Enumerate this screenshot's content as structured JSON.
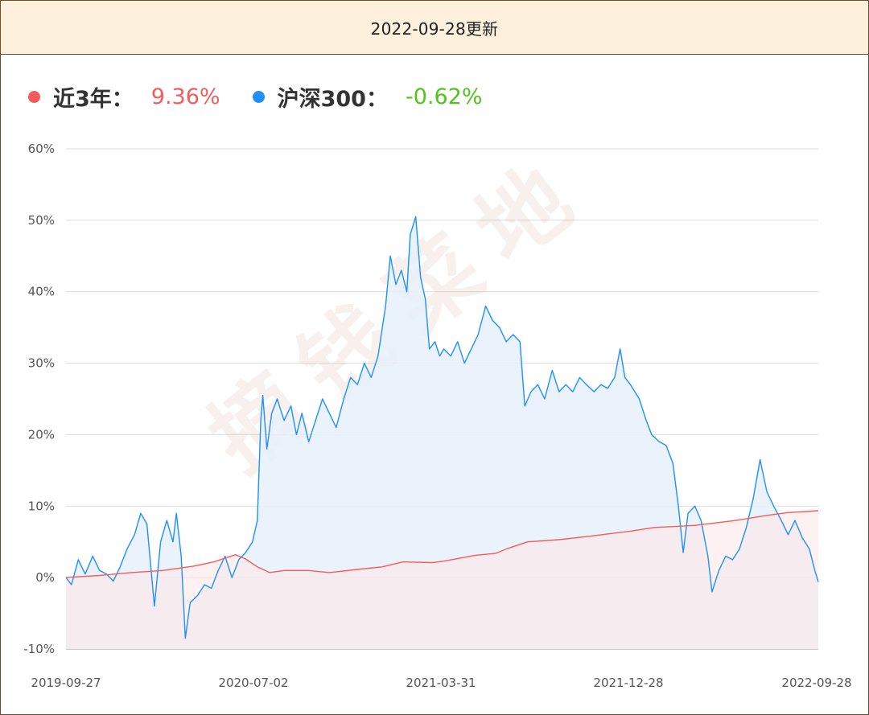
{
  "header": {
    "update_text": "2022-09-28更新"
  },
  "legend": [
    {
      "name": "近3年：",
      "value": "9.36%",
      "color": "#f45b5b",
      "value_color": "#f45b5b"
    },
    {
      "name": "沪深300：",
      "value": "-0.62%",
      "color": "#1e90ff",
      "value_color": "#52c41a"
    }
  ],
  "watermark": "摘钱菜地",
  "chart_data": {
    "type": "line",
    "y_ticks": [
      "60%",
      "50%",
      "40%",
      "30%",
      "20%",
      "10%",
      "0%",
      "-10%"
    ],
    "x_ticks": [
      "2019-09-27",
      "2020-07-02",
      "2021-03-31",
      "2021-12-28",
      "2022-09-28"
    ],
    "ylim": [
      -10,
      60
    ],
    "grid": true,
    "x_range": [
      "2019-09-27",
      "2022-09-28"
    ],
    "series": [
      {
        "name": "近3年",
        "color": "#f45b5b",
        "fill": "#fde8e8",
        "points": [
          [
            "2019-09-27",
            0.0
          ],
          [
            "2019-11-15",
            0.3
          ],
          [
            "2019-12-31",
            0.7
          ],
          [
            "2020-02-15",
            1.0
          ],
          [
            "2020-03-31",
            1.6
          ],
          [
            "2020-04-30",
            2.2
          ],
          [
            "2020-05-31",
            3.2
          ],
          [
            "2020-06-15",
            2.6
          ],
          [
            "2020-07-02",
            1.5
          ],
          [
            "2020-07-20",
            0.7
          ],
          [
            "2020-08-10",
            1.0
          ],
          [
            "2020-09-15",
            1.0
          ],
          [
            "2020-10-15",
            0.7
          ],
          [
            "2020-11-30",
            1.2
          ],
          [
            "2020-12-31",
            1.5
          ],
          [
            "2021-01-31",
            2.2
          ],
          [
            "2021-03-15",
            2.1
          ],
          [
            "2021-03-31",
            2.3
          ],
          [
            "2021-05-15",
            3.1
          ],
          [
            "2021-06-15",
            3.4
          ],
          [
            "2021-06-30",
            4.0
          ],
          [
            "2021-07-31",
            5.0
          ],
          [
            "2021-09-15",
            5.3
          ],
          [
            "2021-10-31",
            5.8
          ],
          [
            "2021-12-28",
            6.5
          ],
          [
            "2022-01-31",
            7.0
          ],
          [
            "2022-03-31",
            7.3
          ],
          [
            "2022-05-31",
            8.0
          ],
          [
            "2022-07-15",
            8.7
          ],
          [
            "2022-08-15",
            9.1
          ],
          [
            "2022-09-28",
            9.36
          ]
        ]
      },
      {
        "name": "沪深300",
        "color": "#1e90ff",
        "fill": "#e6f0fb",
        "points": [
          [
            "2019-09-27",
            0.0
          ],
          [
            "2019-10-05",
            -1.0
          ],
          [
            "2019-10-15",
            2.5
          ],
          [
            "2019-10-25",
            0.5
          ],
          [
            "2019-11-05",
            3.0
          ],
          [
            "2019-11-15",
            1.0
          ],
          [
            "2019-11-25",
            0.5
          ],
          [
            "2019-12-05",
            -0.5
          ],
          [
            "2019-12-15",
            1.5
          ],
          [
            "2019-12-25",
            4.0
          ],
          [
            "2020-01-05",
            6.0
          ],
          [
            "2020-01-14",
            9.0
          ],
          [
            "2020-01-23",
            7.5
          ],
          [
            "2020-02-03",
            -4.0
          ],
          [
            "2020-02-12",
            5.0
          ],
          [
            "2020-02-21",
            8.0
          ],
          [
            "2020-03-01",
            5.0
          ],
          [
            "2020-03-06",
            9.0
          ],
          [
            "2020-03-13",
            3.0
          ],
          [
            "2020-03-19",
            -8.5
          ],
          [
            "2020-03-26",
            -3.5
          ],
          [
            "2020-04-06",
            -2.5
          ],
          [
            "2020-04-16",
            -1.0
          ],
          [
            "2020-04-26",
            -1.5
          ],
          [
            "2020-05-06",
            1.0
          ],
          [
            "2020-05-16",
            3.0
          ],
          [
            "2020-05-26",
            0.0
          ],
          [
            "2020-06-05",
            2.5
          ],
          [
            "2020-06-15",
            3.5
          ],
          [
            "2020-06-25",
            5.0
          ],
          [
            "2020-07-02",
            8.0
          ],
          [
            "2020-07-07",
            22.0
          ],
          [
            "2020-07-10",
            25.5
          ],
          [
            "2020-07-16",
            18.0
          ],
          [
            "2020-07-23",
            23.0
          ],
          [
            "2020-07-31",
            25.0
          ],
          [
            "2020-08-10",
            22.0
          ],
          [
            "2020-08-20",
            24.0
          ],
          [
            "2020-08-28",
            20.0
          ],
          [
            "2020-09-05",
            23.0
          ],
          [
            "2020-09-15",
            19.0
          ],
          [
            "2020-09-25",
            22.0
          ],
          [
            "2020-10-05",
            25.0
          ],
          [
            "2020-10-15",
            23.0
          ],
          [
            "2020-10-25",
            21.0
          ],
          [
            "2020-11-05",
            25.0
          ],
          [
            "2020-11-15",
            28.0
          ],
          [
            "2020-11-25",
            27.0
          ],
          [
            "2020-12-05",
            30.0
          ],
          [
            "2020-12-15",
            28.0
          ],
          [
            "2020-12-25",
            31.0
          ],
          [
            "2021-01-05",
            38.0
          ],
          [
            "2021-01-12",
            45.0
          ],
          [
            "2021-01-20",
            41.0
          ],
          [
            "2021-01-28",
            43.0
          ],
          [
            "2021-02-05",
            40.0
          ],
          [
            "2021-02-10",
            48.0
          ],
          [
            "2021-02-18",
            50.5
          ],
          [
            "2021-02-25",
            42.0
          ],
          [
            "2021-03-04",
            39.0
          ],
          [
            "2021-03-10",
            32.0
          ],
          [
            "2021-03-18",
            33.0
          ],
          [
            "2021-03-25",
            31.0
          ],
          [
            "2021-03-31",
            32.0
          ],
          [
            "2021-04-10",
            31.0
          ],
          [
            "2021-04-20",
            33.0
          ],
          [
            "2021-04-30",
            30.0
          ],
          [
            "2021-05-10",
            32.0
          ],
          [
            "2021-05-20",
            34.0
          ],
          [
            "2021-05-31",
            38.0
          ],
          [
            "2021-06-10",
            36.0
          ],
          [
            "2021-06-20",
            35.0
          ],
          [
            "2021-06-30",
            33.0
          ],
          [
            "2021-07-10",
            34.0
          ],
          [
            "2021-07-20",
            33.0
          ],
          [
            "2021-07-27",
            24.0
          ],
          [
            "2021-08-05",
            26.0
          ],
          [
            "2021-08-15",
            27.0
          ],
          [
            "2021-08-25",
            25.0
          ],
          [
            "2021-09-05",
            29.0
          ],
          [
            "2021-09-15",
            26.0
          ],
          [
            "2021-09-25",
            27.0
          ],
          [
            "2021-10-05",
            26.0
          ],
          [
            "2021-10-15",
            28.0
          ],
          [
            "2021-10-25",
            27.0
          ],
          [
            "2021-11-05",
            26.0
          ],
          [
            "2021-11-15",
            27.0
          ],
          [
            "2021-11-25",
            26.5
          ],
          [
            "2021-12-05",
            28.0
          ],
          [
            "2021-12-13",
            32.0
          ],
          [
            "2021-12-20",
            28.0
          ],
          [
            "2021-12-28",
            27.0
          ],
          [
            "2022-01-10",
            25.0
          ],
          [
            "2022-01-20",
            22.0
          ],
          [
            "2022-01-28",
            20.0
          ],
          [
            "2022-02-08",
            19.0
          ],
          [
            "2022-02-18",
            18.5
          ],
          [
            "2022-02-28",
            16.0
          ],
          [
            "2022-03-08",
            10.0
          ],
          [
            "2022-03-15",
            3.5
          ],
          [
            "2022-03-22",
            9.0
          ],
          [
            "2022-04-01",
            10.0
          ],
          [
            "2022-04-10",
            8.0
          ],
          [
            "2022-04-20",
            3.0
          ],
          [
            "2022-04-26",
            -2.0
          ],
          [
            "2022-05-06",
            1.0
          ],
          [
            "2022-05-16",
            3.0
          ],
          [
            "2022-05-26",
            2.5
          ],
          [
            "2022-06-05",
            4.0
          ],
          [
            "2022-06-15",
            7.0
          ],
          [
            "2022-06-25",
            11.0
          ],
          [
            "2022-07-05",
            16.5
          ],
          [
            "2022-07-15",
            12.0
          ],
          [
            "2022-07-25",
            10.0
          ],
          [
            "2022-08-05",
            8.0
          ],
          [
            "2022-08-15",
            6.0
          ],
          [
            "2022-08-25",
            8.0
          ],
          [
            "2022-09-05",
            5.5
          ],
          [
            "2022-09-15",
            4.0
          ],
          [
            "2022-09-23",
            1.0
          ],
          [
            "2022-09-28",
            -0.62
          ]
        ]
      }
    ]
  }
}
